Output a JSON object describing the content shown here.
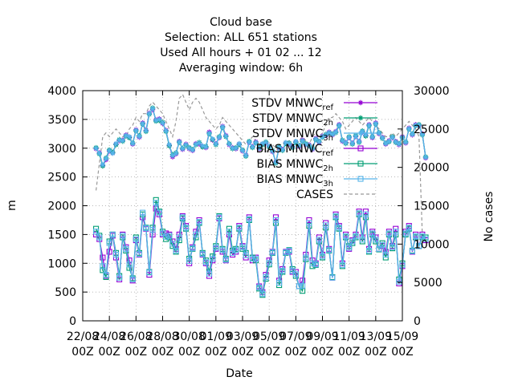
{
  "chart_data": {
    "type": "line",
    "title_lines": [
      "Cloud base",
      "Selection: ALL    651 stations",
      "Used  All hours  + 01 02 ... 12",
      "Averaging window:  6h"
    ],
    "xlabel": "Date",
    "ylabel": "m",
    "y2label": "No cases",
    "xticks": [
      {
        "top": "22/08",
        "bottom": "00Z"
      },
      {
        "top": "24/08",
        "bottom": "00Z"
      },
      {
        "top": "26/08",
        "bottom": "00Z"
      },
      {
        "top": "28/08",
        "bottom": "00Z"
      },
      {
        "top": "30/08",
        "bottom": "00Z"
      },
      {
        "top": "01/09",
        "bottom": "00Z"
      },
      {
        "top": "03/09",
        "bottom": "00Z"
      },
      {
        "top": "05/09",
        "bottom": "00Z"
      },
      {
        "top": "07/09",
        "bottom": "00Z"
      },
      {
        "top": "09/09",
        "bottom": "00Z"
      },
      {
        "top": "11/09",
        "bottom": "00Z"
      },
      {
        "top": "13/09",
        "bottom": "00Z"
      },
      {
        "top": "15/09",
        "bottom": "00Z"
      }
    ],
    "xlim_days": [
      0,
      24
    ],
    "ylim": [
      0,
      4000
    ],
    "yticks": [
      0,
      500,
      1000,
      1500,
      2000,
      2500,
      3000,
      3500,
      4000
    ],
    "y2lim": [
      0,
      30000
    ],
    "y2ticks": [
      0,
      5000,
      10000,
      15000,
      20000,
      25000,
      30000
    ],
    "grid": true,
    "legend_position": "top-right",
    "step_days": 0.25,
    "series": [
      {
        "name": "STDV MNWC_ref",
        "label_main": "STDV MNWC",
        "label_sub": "ref",
        "color": "#9400d3",
        "marker": "star",
        "axis": "y1",
        "dash": false,
        "values": [
          2990,
          2920,
          2700,
          2800,
          2950,
          2920,
          3070,
          3130,
          3140,
          3230,
          3190,
          3070,
          3320,
          3190,
          3440,
          3310,
          3610,
          3670,
          3490,
          3510,
          3430,
          3310,
          3050,
          2850,
          2900,
          3120,
          2980,
          3070,
          2990,
          2960,
          3080,
          3070,
          3030,
          3010,
          3280,
          3140,
          3080,
          3180,
          3380,
          3220,
          3060,
          3010,
          2990,
          3070,
          2950,
          2880,
          3100,
          3030,
          3110,
          2990,
          3070,
          3090,
          3030,
          2940,
          2760,
          3010,
          2980,
          3090,
          3070,
          3030,
          3110,
          3030,
          3140,
          3060,
          3060,
          2980,
          3170,
          3100,
          3210,
          3220,
          3280,
          3230,
          3290,
          3410,
          3120,
          3100,
          3180,
          3090,
          3200,
          3120,
          3280,
          3220,
          3410,
          3180,
          3440,
          3250,
          3190,
          3070,
          3130,
          3180,
          3120,
          3060,
          3200,
          3090,
          3350,
          3230,
          3410,
          3390,
          3250,
          2830
        ]
      },
      {
        "name": "STDV MNWC_2h",
        "label_main": "STDV MNWC",
        "label_sub": "2h",
        "color": "#009e73",
        "marker": "star",
        "axis": "y1",
        "dash": false,
        "values": [
          3010,
          2900,
          2690,
          2830,
          2970,
          2930,
          3060,
          3150,
          3120,
          3210,
          3180,
          3090,
          3300,
          3220,
          3420,
          3290,
          3590,
          3700,
          3470,
          3480,
          3450,
          3290,
          3040,
          2890,
          2920,
          3100,
          3000,
          3050,
          3010,
          2980,
          3060,
          3100,
          3020,
          3030,
          3250,
          3150,
          3060,
          3200,
          3360,
          3200,
          3080,
          2990,
          3010,
          3060,
          2970,
          2860,
          3120,
          3010,
          3090,
          3010,
          3060,
          3110,
          3020,
          2960,
          2740,
          3030,
          2960,
          3080,
          3090,
          3010,
          3100,
          3050,
          3120,
          3080,
          3040,
          3000,
          3150,
          3120,
          3190,
          3240,
          3260,
          3250,
          3270,
          3390,
          3140,
          3080,
          3200,
          3070,
          3220,
          3100,
          3300,
          3210,
          3390,
          3200,
          3420,
          3270,
          3170,
          3090,
          3110,
          3200,
          3100,
          3080,
          3180,
          3110,
          3330,
          3250,
          3390,
          3410,
          3230,
          2850
        ]
      },
      {
        "name": "STDV MNWC_3h",
        "label_main": "STDV MNWC",
        "label_sub": "3h",
        "color": "#56b4e9",
        "marker": "star",
        "axis": "y1",
        "dash": false,
        "values": [
          3000,
          2910,
          2710,
          2820,
          2960,
          2910,
          3080,
          3140,
          3130,
          3220,
          3200,
          3080,
          3310,
          3200,
          3430,
          3300,
          3600,
          3690,
          3480,
          3500,
          3440,
          3300,
          3060,
          2870,
          2910,
          3110,
          2990,
          3060,
          3000,
          2970,
          3070,
          3090,
          3040,
          3020,
          3260,
          3160,
          3070,
          3190,
          3370,
          3210,
          3070,
          3000,
          3000,
          3080,
          2960,
          2870,
          3110,
          3020,
          3100,
          3000,
          3080,
          3100,
          3040,
          2950,
          2750,
          3020,
          2970,
          3100,
          3080,
          3020,
          3120,
          3040,
          3130,
          3070,
          3050,
          2990,
          3160,
          3110,
          3200,
          3230,
          3270,
          3240,
          3280,
          3400,
          3130,
          3090,
          3190,
          3080,
          3210,
          3110,
          3290,
          3230,
          3400,
          3190,
          3430,
          3260,
          3180,
          3080,
          3120,
          3190,
          3110,
          3070,
          3190,
          3100,
          3340,
          3240,
          3400,
          3400,
          3240,
          2840
        ]
      },
      {
        "name": "BIAS MNWC_ref",
        "label_main": "BIAS MNWC",
        "label_sub": "ref",
        "color": "#9400d3",
        "marker": "square",
        "axis": "y1",
        "dash": false,
        "values": [
          1500,
          1420,
          1100,
          780,
          1200,
          1480,
          1100,
          720,
          1500,
          1280,
          1050,
          700,
          1400,
          1150,
          1800,
          1600,
          800,
          1500,
          1950,
          1850,
          1500,
          1520,
          1500,
          1380,
          1250,
          1500,
          1820,
          1650,
          1000,
          1280,
          1550,
          1750,
          1150,
          1000,
          780,
          1050,
          1250,
          1780,
          1200,
          1050,
          1500,
          1150,
          1200,
          1650,
          1300,
          1100,
          1800,
          1050,
          1100,
          600,
          500,
          800,
          1050,
          1200,
          1800,
          700,
          900,
          1200,
          1200,
          850,
          850,
          600,
          700,
          1150,
          1750,
          1050,
          1000,
          1450,
          1150,
          1700,
          1250,
          750,
          1850,
          1650,
          1000,
          1500,
          1250,
          1400,
          1500,
          1900,
          1450,
          1900,
          1250,
          1550,
          1450,
          1250,
          1300,
          1200,
          1550,
          1300,
          1600,
          650,
          950,
          1550,
          1650,
          1200,
          1500,
          1300,
          1500,
          1400
        ]
      },
      {
        "name": "BIAS MNWC_2h",
        "label_main": "BIAS MNWC",
        "label_sub": "2h",
        "color": "#009e73",
        "marker": "square",
        "axis": "y1",
        "dash": false,
        "values": [
          1600,
          1480,
          880,
          760,
          1380,
          1500,
          1180,
          780,
          1450,
          1220,
          920,
          740,
          1450,
          1180,
          1850,
          1620,
          850,
          1620,
          2100,
          1900,
          1550,
          1420,
          1450,
          1300,
          1200,
          1400,
          1780,
          1600,
          1080,
          1250,
          1450,
          1700,
          1180,
          1050,
          860,
          1120,
          1300,
          1820,
          1250,
          1080,
          1600,
          1220,
          1250,
          1600,
          1250,
          1180,
          1750,
          1100,
          1050,
          560,
          450,
          730,
          980,
          1180,
          1700,
          620,
          850,
          1180,
          1230,
          900,
          780,
          600,
          520,
          1070,
          1650,
          950,
          970,
          1380,
          1100,
          1620,
          1220,
          760,
          1800,
          1600,
          950,
          1450,
          1300,
          1350,
          1450,
          1850,
          1380,
          1800,
          1200,
          1500,
          1380,
          1240,
          1350,
          1100,
          1500,
          1260,
          1500,
          720,
          1000,
          1500,
          1600,
          1220,
          1450,
          1300,
          1450,
          1450
        ]
      },
      {
        "name": "BIAS MNWC_3h",
        "label_main": "BIAS MNWC",
        "label_sub": "3h",
        "color": "#56b4e9",
        "marker": "square",
        "axis": "y1",
        "dash": false,
        "values": [
          1550,
          1450,
          950,
          800,
          1350,
          1500,
          1150,
          750,
          1480,
          1250,
          980,
          720,
          1420,
          1160,
          1880,
          1610,
          840,
          1580,
          2050,
          1880,
          1520,
          1460,
          1480,
          1340,
          1220,
          1450,
          1800,
          1620,
          1040,
          1260,
          1500,
          1720,
          1160,
          1020,
          820,
          1080,
          1270,
          1800,
          1230,
          1060,
          1550,
          1180,
          1230,
          1620,
          1280,
          1140,
          1770,
          1080,
          1080,
          580,
          470,
          760,
          1010,
          1190,
          1750,
          660,
          870,
          1190,
          1220,
          870,
          810,
          600,
          610,
          1100,
          1700,
          1000,
          980,
          1410,
          1120,
          1660,
          1230,
          750,
          1820,
          1620,
          970,
          1470,
          1270,
          1380,
          1470,
          1870,
          1410,
          1850,
          1220,
          1520,
          1410,
          1250,
          1320,
          1150,
          1520,
          1280,
          1550,
          680,
          970,
          1520,
          1620,
          1210,
          1470,
          1300,
          1470,
          1420
        ]
      },
      {
        "name": "CASES",
        "label_main": "CASES",
        "label_sub": "",
        "color": "#999999",
        "marker": "none",
        "axis": "y2",
        "dash": true,
        "values": [
          17000,
          20500,
          24000,
          24500,
          24000,
          24500,
          25000,
          24500,
          24000,
          24000,
          25000,
          25500,
          26500,
          26000,
          27000,
          27000,
          28000,
          28500,
          28000,
          27500,
          27000,
          26000,
          25000,
          24000,
          26000,
          29000,
          29500,
          28500,
          27500,
          28500,
          29000,
          28500,
          27500,
          26500,
          26000,
          25500,
          25000,
          25500,
          26500,
          26000,
          25500,
          25000,
          24500,
          24000,
          23500,
          23000,
          23500,
          24000,
          23500,
          23000,
          22500,
          22000,
          22500,
          23000,
          22500,
          22000,
          22500,
          23000,
          23500,
          23000,
          23000,
          23500,
          24000,
          23500,
          23000,
          24000,
          24500,
          24000,
          24500,
          25500,
          26500,
          26500,
          27000,
          26500,
          26000,
          25000,
          25500,
          26000,
          26500,
          26000,
          25500,
          26000,
          26500,
          26000,
          25500,
          25000,
          24500,
          24000,
          24000,
          24500,
          24000,
          24500,
          25000,
          25500,
          26000,
          25500,
          25000,
          24000,
          11000,
          11000
        ]
      }
    ]
  }
}
